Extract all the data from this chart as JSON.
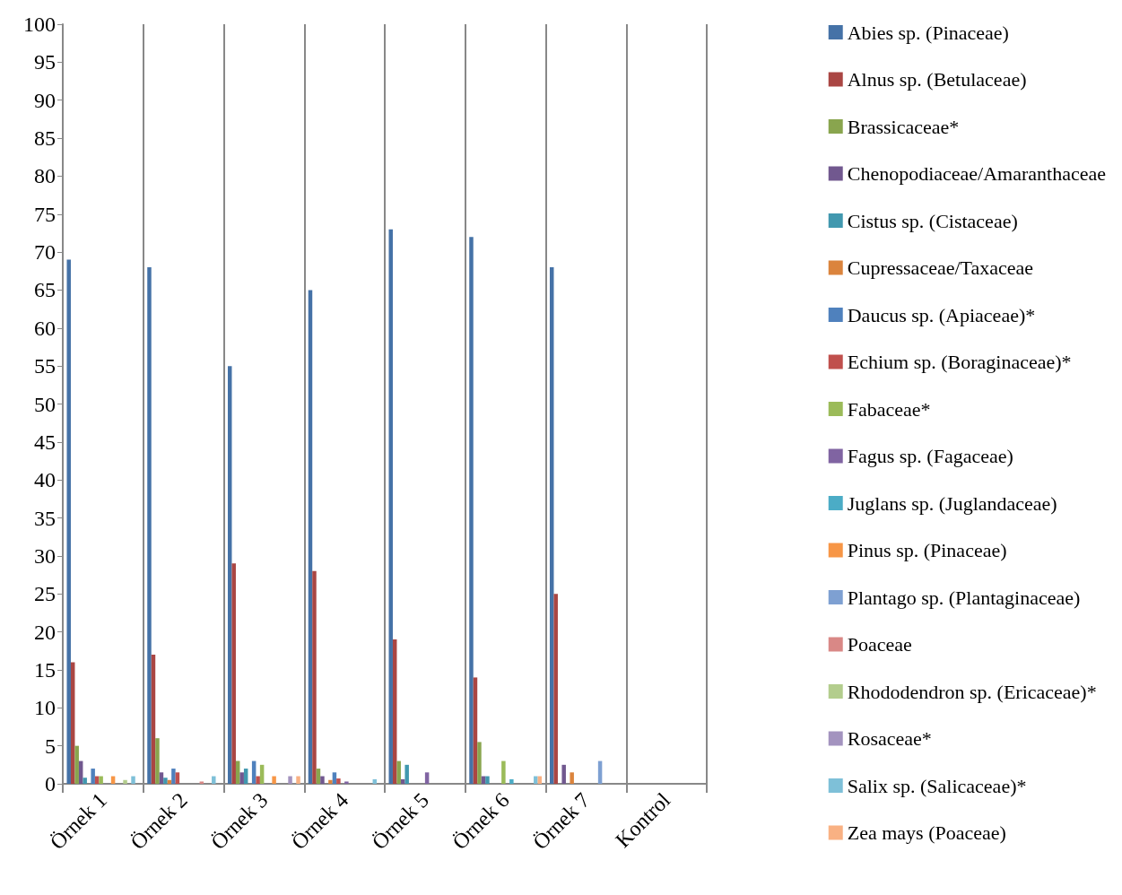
{
  "chart_data": {
    "type": "bar",
    "categories": [
      "Örnek 1",
      "Örnek 2",
      "Örnek 3",
      "Örnek 4",
      "Örnek 5",
      "Örnek 6",
      "Örnek 7",
      "Kontrol"
    ],
    "ylim": [
      0,
      100
    ],
    "yticks": [
      0,
      5,
      10,
      15,
      20,
      25,
      30,
      35,
      40,
      45,
      50,
      55,
      60,
      65,
      70,
      75,
      80,
      85,
      90,
      95,
      100
    ],
    "grid": "x",
    "legend": "right",
    "series": [
      {
        "name": "Abies sp. (Pinaceae)",
        "color": "#4572a7",
        "values": [
          69,
          68,
          55,
          65,
          73,
          72,
          68,
          0
        ]
      },
      {
        "name": "Alnus sp. (Betulaceae)",
        "color": "#aa4643",
        "values": [
          16,
          17,
          29,
          28,
          19,
          14,
          25,
          0
        ]
      },
      {
        "name": "Brassicaceae*",
        "color": "#89a54e",
        "values": [
          5,
          6,
          3,
          2,
          3,
          5.5,
          0,
          0
        ]
      },
      {
        "name": "Chenopodiaceae/Amaranthaceae",
        "color": "#71588f",
        "values": [
          3,
          1.5,
          1.5,
          1,
          0.6,
          1,
          2.5,
          0
        ]
      },
      {
        "name": "Cistus sp. (Cistaceae)",
        "color": "#4198af",
        "values": [
          0.8,
          0.8,
          2,
          0,
          2.5,
          1,
          0,
          0
        ]
      },
      {
        "name": "Cupressaceae/Taxaceae",
        "color": "#db843d",
        "values": [
          0,
          0.5,
          0,
          0.5,
          0,
          0,
          1.5,
          0
        ]
      },
      {
        "name": "Daucus sp. (Apiaceae)*",
        "color": "#4f81bd",
        "values": [
          2,
          2,
          3,
          1.5,
          0,
          0,
          0,
          0
        ]
      },
      {
        "name": "Echium sp. (Boraginaceae)*",
        "color": "#c0504d",
        "values": [
          1,
          1.5,
          1,
          0.7,
          0,
          0,
          0,
          0
        ]
      },
      {
        "name": "Fabaceae*",
        "color": "#9bbb59",
        "values": [
          1,
          0,
          2.5,
          0,
          0,
          3,
          0,
          0
        ]
      },
      {
        "name": "Fagus sp. (Fagaceae)",
        "color": "#8064a2",
        "values": [
          0,
          0,
          0,
          0.3,
          1.5,
          0,
          0,
          0
        ]
      },
      {
        "name": "Juglans sp. (Juglandaceae)",
        "color": "#4bacc6",
        "values": [
          0,
          0,
          0,
          0,
          0,
          0.6,
          0,
          0
        ]
      },
      {
        "name": "Pinus sp. (Pinaceae)",
        "color": "#f79646",
        "values": [
          1,
          0,
          1,
          0,
          0,
          0,
          0,
          0
        ]
      },
      {
        "name": "Plantago sp. (Plantaginaceae)",
        "color": "#7ea0d2",
        "values": [
          0,
          0,
          0,
          0,
          0,
          0,
          3,
          0
        ]
      },
      {
        "name": "Poaceae",
        "color": "#d98886",
        "values": [
          0,
          0.3,
          0,
          0,
          0,
          0,
          0,
          0
        ]
      },
      {
        "name": "Rhododendron sp. (Ericaceae)*",
        "color": "#b3cd8d",
        "values": [
          0.5,
          0,
          0,
          0,
          0,
          0,
          0,
          0
        ]
      },
      {
        "name": "Rosaceae*",
        "color": "#a393bf",
        "values": [
          0,
          0,
          1,
          0,
          0,
          0,
          0,
          0
        ]
      },
      {
        "name": "Salix sp. (Salicaceae)*",
        "color": "#7ec0d8",
        "values": [
          1,
          1,
          0,
          0.6,
          0,
          1,
          0,
          0
        ]
      },
      {
        "name": "Zea mays (Poaceae)",
        "color": "#f9b183",
        "values": [
          0,
          0,
          1,
          0,
          0,
          1,
          0,
          0
        ]
      }
    ]
  }
}
